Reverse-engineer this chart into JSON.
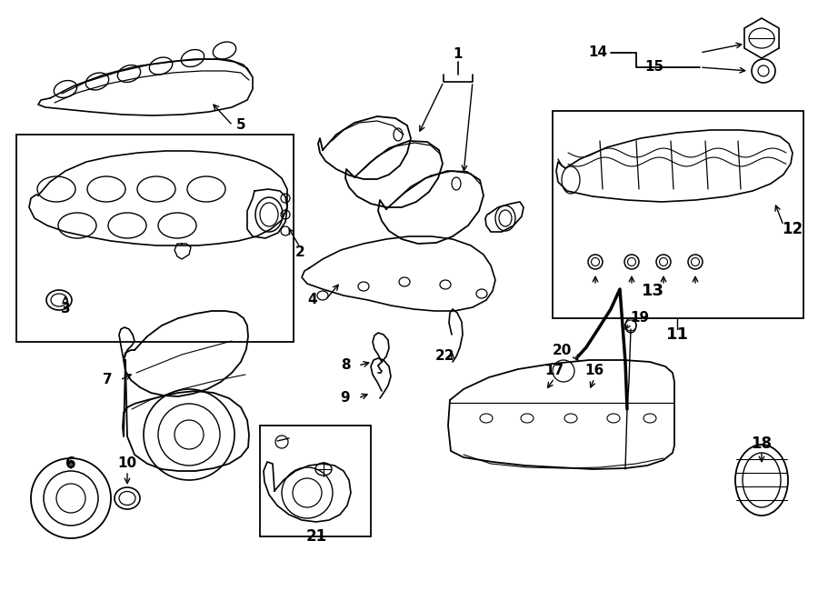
{
  "bg_color": "#ffffff",
  "line_color": "#000000",
  "fig_width": 9.0,
  "fig_height": 6.61,
  "dpi": 100,
  "lw": 1.1,
  "fs": 11
}
